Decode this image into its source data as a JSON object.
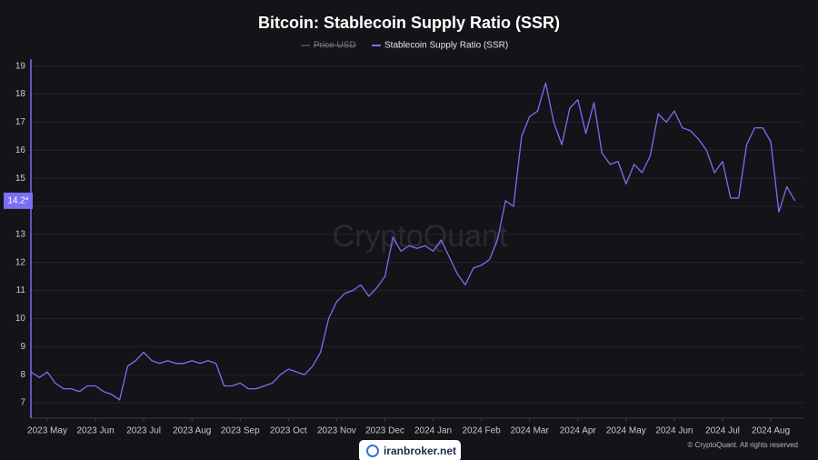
{
  "chart_data": {
    "type": "line",
    "title": "Bitcoin: Stablecoin Supply Ratio (SSR)",
    "watermark": "CryptoQuant",
    "copyright": "© CryptoQuant. All rights reserved",
    "badge": "iranbroker.net",
    "legend_disabled": [
      "Price USD"
    ],
    "last_value_label": {
      "value": 14.2,
      "label": "14.2*"
    },
    "categories": [
      null,
      null,
      "2023 May",
      null,
      null,
      null,
      null,
      null,
      "2023 Jun",
      null,
      null,
      null,
      null,
      null,
      "2023 Jul",
      null,
      null,
      null,
      null,
      null,
      "2023 Aug",
      null,
      null,
      null,
      null,
      null,
      "2023 Sep",
      null,
      null,
      null,
      null,
      null,
      "2023 Oct",
      null,
      null,
      null,
      null,
      null,
      "2023 Nov",
      null,
      null,
      null,
      null,
      null,
      "2023 Dec",
      null,
      null,
      null,
      null,
      null,
      "2024 Jan",
      null,
      null,
      null,
      null,
      null,
      "2024 Feb",
      null,
      null,
      null,
      null,
      null,
      "2024 Mar",
      null,
      null,
      null,
      null,
      null,
      "2024 Apr",
      null,
      null,
      null,
      null,
      null,
      "2024 May",
      null,
      null,
      null,
      null,
      null,
      "2024 Jun",
      null,
      null,
      null,
      null,
      null,
      "2024 Jul",
      null,
      null,
      null,
      null,
      null,
      "2024 Aug",
      null,
      null,
      null
    ],
    "series": [
      {
        "name": "Stablecoin Supply Ratio (SSR)",
        "color": "#7b6ef6",
        "values": [
          8.1,
          7.9,
          8.1,
          7.7,
          7.5,
          7.5,
          7.4,
          7.6,
          7.6,
          7.4,
          7.3,
          7.1,
          8.3,
          8.5,
          8.8,
          8.5,
          8.4,
          8.5,
          8.4,
          8.4,
          8.5,
          8.4,
          8.5,
          8.4,
          7.6,
          7.6,
          7.7,
          7.5,
          7.5,
          7.6,
          7.7,
          8.0,
          8.2,
          8.1,
          8.0,
          8.3,
          8.8,
          10.0,
          10.6,
          10.9,
          11.0,
          11.2,
          10.8,
          11.1,
          11.5,
          12.9,
          12.4,
          12.6,
          12.5,
          12.6,
          12.4,
          12.8,
          12.2,
          11.6,
          11.2,
          11.8,
          11.9,
          12.1,
          12.8,
          14.2,
          14.0,
          16.5,
          17.2,
          17.4,
          18.4,
          17.0,
          16.2,
          17.5,
          17.8,
          16.6,
          17.7,
          15.9,
          15.5,
          15.6,
          14.8,
          15.5,
          15.2,
          15.8,
          17.3,
          17.0,
          17.4,
          16.8,
          16.7,
          16.4,
          16.0,
          15.2,
          15.6,
          14.3,
          14.3,
          16.2,
          16.8,
          16.8,
          16.3,
          13.8,
          14.7,
          14.2
        ]
      }
    ],
    "ylim": [
      6.45,
      19.25
    ],
    "yticks": [
      7,
      8,
      9,
      10,
      11,
      12,
      13,
      14,
      15,
      16,
      17,
      18,
      19
    ],
    "grid": true
  }
}
